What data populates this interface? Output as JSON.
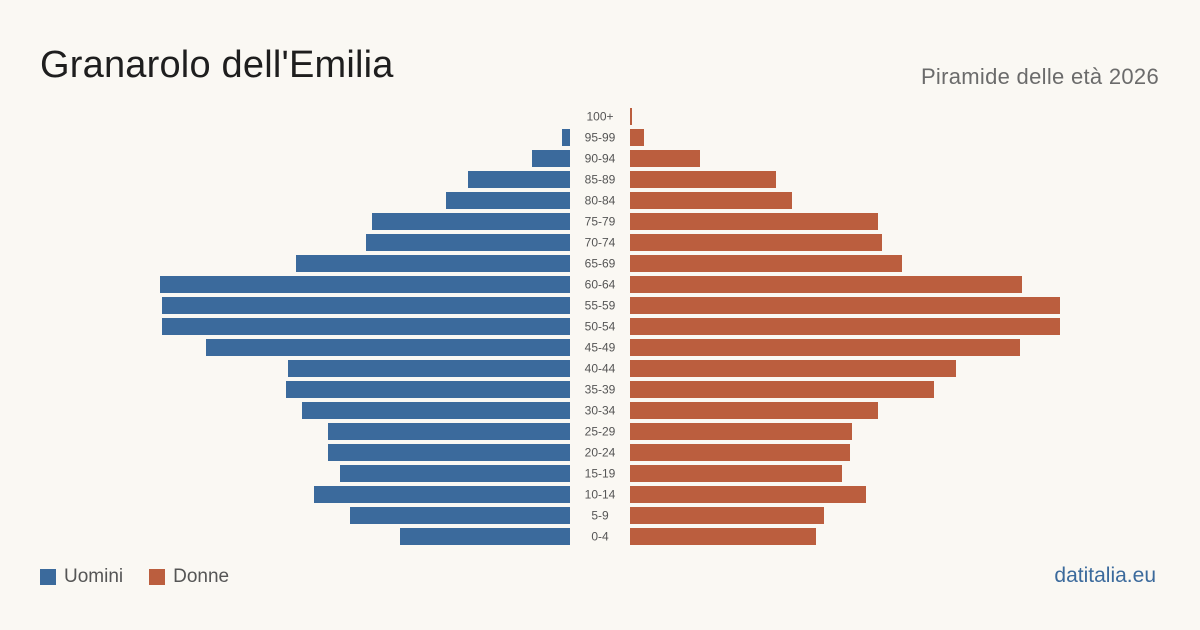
{
  "header": {
    "title": "Granarolo dell'Emilia",
    "subtitle": "Piramide delle età 2026"
  },
  "legend": {
    "men_label": "Uomini",
    "women_label": "Donne"
  },
  "brand": "datitalia.eu",
  "colors": {
    "men": "#3b6a9c",
    "women": "#bb5e3e",
    "background": "#faf8f3",
    "tick_label": "#555555"
  },
  "chart_data": {
    "type": "bar",
    "orientation": "horizontal-population-pyramid",
    "title": "Granarolo dell'Emilia",
    "subtitle": "Piramide delle età 2026",
    "categories": [
      "100+",
      "95-99",
      "90-94",
      "85-89",
      "80-84",
      "75-79",
      "70-74",
      "65-69",
      "60-64",
      "55-59",
      "50-54",
      "45-49",
      "40-44",
      "35-39",
      "30-34",
      "25-29",
      "20-24",
      "15-19",
      "10-14",
      "5-9",
      "0-4"
    ],
    "series": [
      {
        "name": "Uomini",
        "values": [
          0,
          4,
          19,
          51,
          62,
          99,
          102,
          137,
          205,
          204,
          204,
          182,
          141,
          142,
          134,
          121,
          121,
          115,
          128,
          110,
          85
        ]
      },
      {
        "name": "Donne",
        "values": [
          1,
          7,
          35,
          73,
          81,
          124,
          126,
          136,
          196,
          215,
          215,
          195,
          163,
          152,
          124,
          111,
          110,
          106,
          118,
          97,
          93
        ]
      }
    ],
    "xlim": [
      0,
      215
    ],
    "legend_position": "bottom-left",
    "grid": false
  }
}
